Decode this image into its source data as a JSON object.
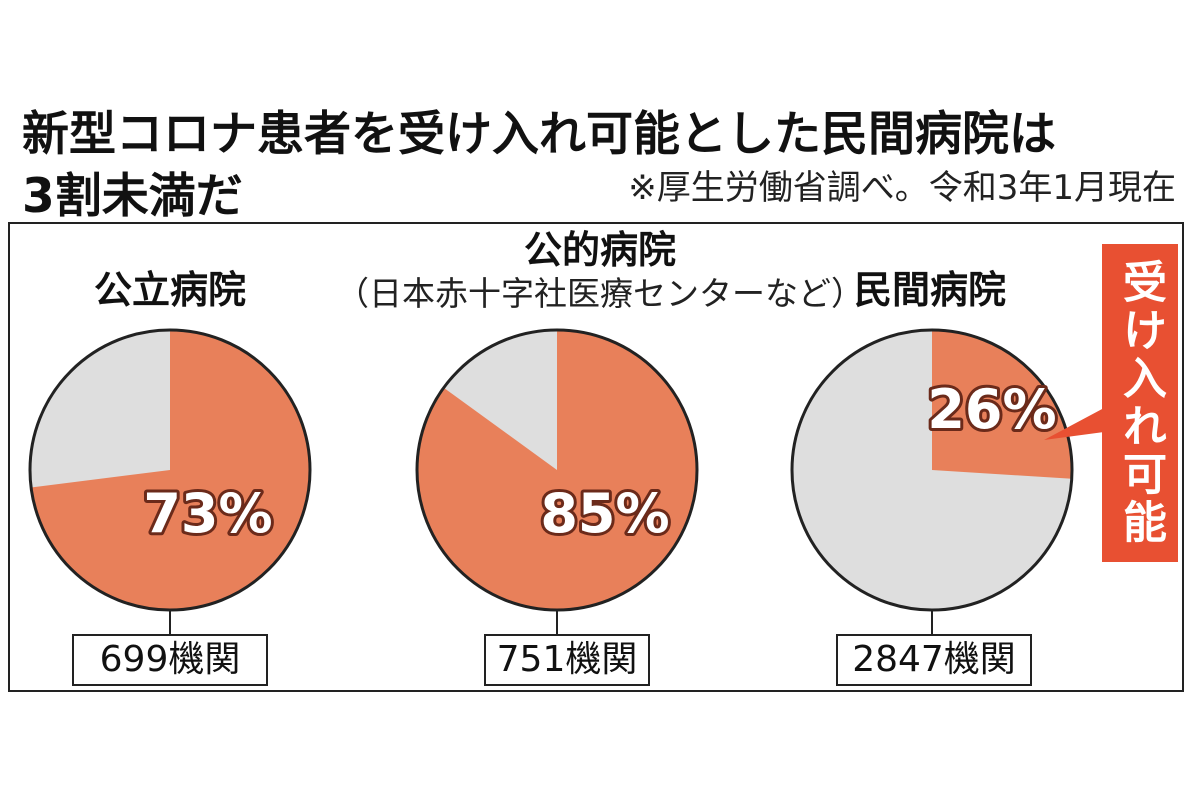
{
  "title": {
    "line1": "新型コロナ患者を受け入れ可能とした民間病院は",
    "line2": "3割未満だ"
  },
  "source_note": "※厚生労働省調べ。令和3年1月現在",
  "callout_label": "受け入れ可能",
  "colors": {
    "accepting": "#e8805a",
    "not_accepting": "#dedede",
    "callout": "#e85032",
    "outline": "#222222"
  },
  "chart_data": [
    {
      "type": "pie",
      "title": "公立病院",
      "subtitle": "",
      "accepting_percent": 73,
      "percent_label": "73%",
      "count_label": "699機関"
    },
    {
      "type": "pie",
      "title": "公的病院",
      "subtitle": "（日本赤十字社医療センターなど）",
      "accepting_percent": 85,
      "percent_label": "85%",
      "count_label": "751機関"
    },
    {
      "type": "pie",
      "title": "民間病院",
      "subtitle": "",
      "accepting_percent": 26,
      "percent_label": "26%",
      "count_label": "2847機関"
    }
  ]
}
